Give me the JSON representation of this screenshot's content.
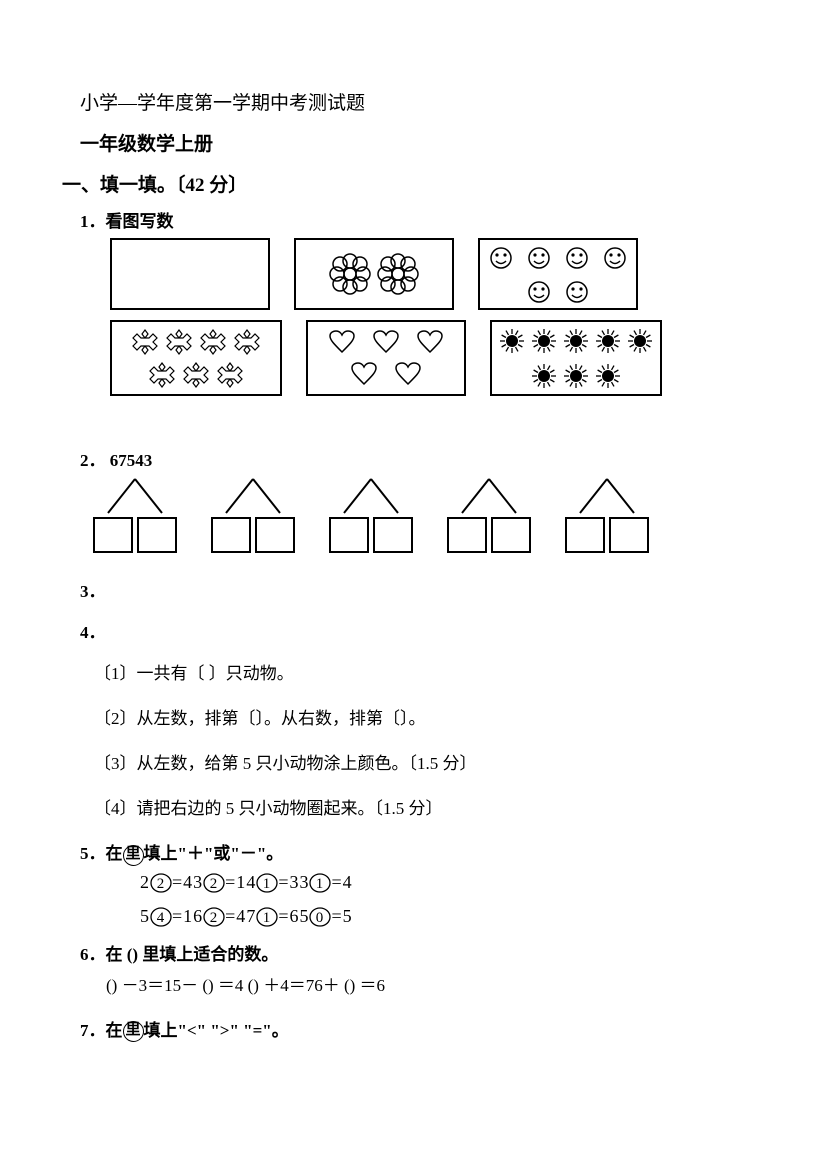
{
  "header": {
    "title": "小学—学年度第一学期中考测试题",
    "subtitle": "一年级数学上册"
  },
  "section1": {
    "heading": "一、填一填。〔42 分〕",
    "q1": {
      "label": "1．看图写数"
    },
    "q2": {
      "label": "2． 67543"
    },
    "q3": {
      "label": "3．"
    },
    "q4": {
      "label": "4．",
      "sub1": "〔1〕一共有〔 〕只动物。",
      "sub2": "〔2〕从左数，排第〔〕。从右数，排第〔〕。",
      "sub3": "〔3〕从左数，给第 5 只小动物涂上颜色。〔1.5 分〕",
      "sub4": "〔4〕请把右边的 5 只小动物圈起来。〔1.5 分〕"
    },
    "q5": {
      "label_pre": "5．在",
      "label_circ": "里",
      "label_post": "填上\"＋\"或\"－\"。",
      "row1": [
        [
          "2",
          "2",
          "=",
          "4"
        ],
        [
          "3",
          "2",
          "=",
          "1"
        ],
        [
          "4",
          "1",
          "=",
          "3"
        ],
        [
          "3",
          "1",
          "=",
          "4"
        ]
      ],
      "row2": [
        [
          "5",
          "4",
          "=",
          "1"
        ],
        [
          "6",
          "2",
          "=",
          "4"
        ],
        [
          "7",
          "1",
          "=",
          "6"
        ],
        [
          "5",
          "0",
          "=",
          "5"
        ]
      ]
    },
    "q6": {
      "label": "6．在 () 里填上适合的数。",
      "eq": "() －3＝15－ () ＝4 () ＋4＝76＋ () ＝6"
    },
    "q7": {
      "label_pre": "7．在",
      "label_circ": "里",
      "label_post": "填上\"<\" \">\" \"=\"。"
    }
  },
  "colors": {
    "stroke": "#000000",
    "bg": "#ffffff"
  }
}
